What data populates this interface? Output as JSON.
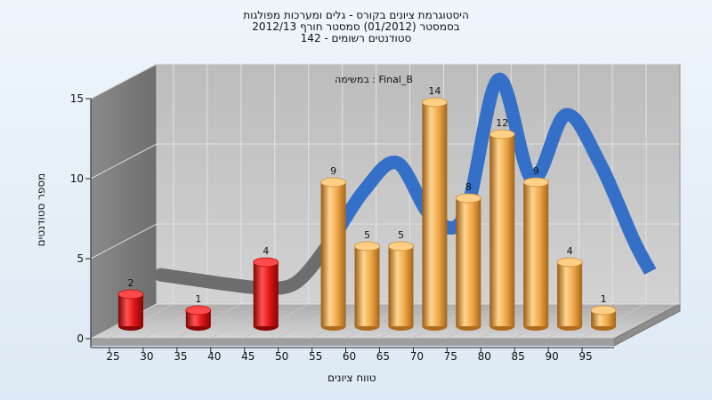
{
  "chart_data": {
    "type": "bar",
    "title_lines": [
      "היסטוגרמת ציונים בקורס - גלים ומערכות מפולגות",
      "בסמסטר (01/2012) סמסטר חורף 2012/13",
      "סטודנטים רשומים - 142"
    ],
    "annotation": "במשימה : Final_B",
    "ylabel": "מספר סטודנטים",
    "xlabel": "טווח ציונים",
    "xticks": [
      25,
      30,
      35,
      40,
      45,
      50,
      55,
      60,
      65,
      70,
      75,
      80,
      85,
      90,
      95
    ],
    "yticks": [
      0,
      5,
      10,
      15
    ],
    "ylim": [
      0,
      15
    ],
    "grid": true,
    "bars": [
      {
        "x": 25,
        "value": 2,
        "color": "#e01818"
      },
      {
        "x": 35,
        "value": 1,
        "color": "#e01818"
      },
      {
        "x": 45,
        "value": 4,
        "color": "#e01818"
      },
      {
        "x": 55,
        "value": 9,
        "color": "#f0a848"
      },
      {
        "x": 60,
        "value": 5,
        "color": "#f0a848"
      },
      {
        "x": 65,
        "value": 5,
        "color": "#f0a848"
      },
      {
        "x": 70,
        "value": 14,
        "color": "#f0a848"
      },
      {
        "x": 75,
        "value": 8,
        "color": "#f0a848"
      },
      {
        "x": 80,
        "value": 12,
        "color": "#f0a848"
      },
      {
        "x": 85,
        "value": 9,
        "color": "#f0a848"
      },
      {
        "x": 90,
        "value": 4,
        "color": "#f0a848"
      },
      {
        "x": 95,
        "value": 1,
        "color": "#f0a848"
      }
    ],
    "curve": {
      "x": [
        27.5,
        32.5,
        37.5,
        42.5,
        47.5,
        52.5,
        57.5,
        62.5,
        67.5,
        72.5,
        77.5,
        82.5,
        87.5,
        92.5,
        97.5,
        100
      ],
      "values": [
        2.8,
        2.5,
        2.2,
        2.0,
        2.3,
        4.8,
        8.0,
        9.8,
        6.5,
        6.5,
        15.0,
        8.8,
        12.8,
        9.8,
        5.0,
        3.0
      ],
      "color": "#3570c8",
      "shadow_color": "#6d6d6d"
    }
  }
}
